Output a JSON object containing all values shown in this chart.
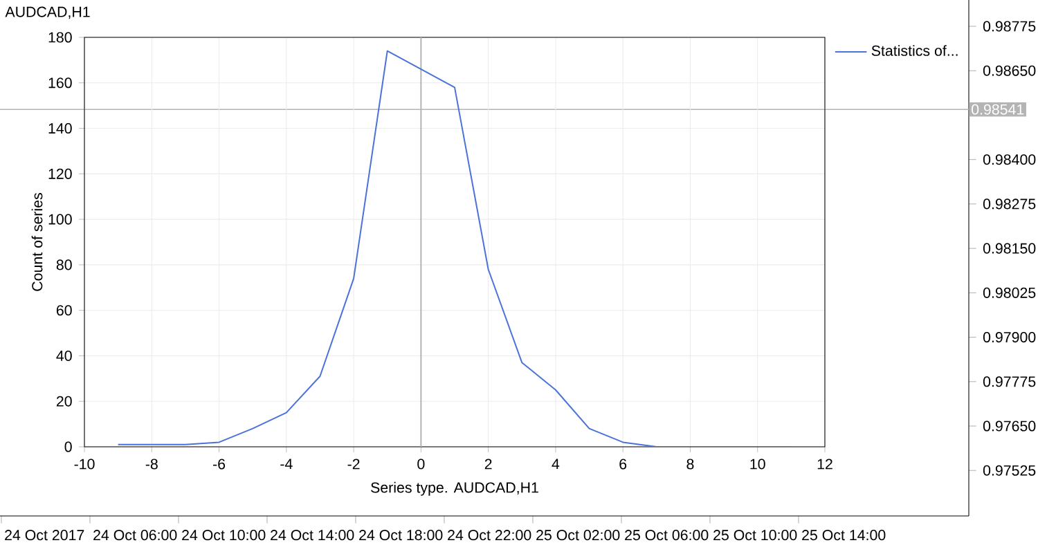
{
  "chart_data": [
    {
      "type": "line",
      "title": "AUDCAD,H1",
      "categories": [
        "24 Oct 2017",
        "24 Oct 06:00",
        "24 Oct 10:00",
        "24 Oct 14:00",
        "24 Oct 18:00",
        "24 Oct 22:00",
        "25 Oct 02:00",
        "25 Oct 06:00",
        "25 Oct 10:00",
        "25 Oct 14:00"
      ],
      "ylim": [
        0.97397,
        0.98849
      ],
      "yticks": [
        {
          "value": 0.98775,
          "label": "0.98775"
        },
        {
          "value": 0.9865,
          "label": "0.98650"
        },
        {
          "value": 0.984,
          "label": "0.98400"
        },
        {
          "value": 0.98275,
          "label": "0.98275"
        },
        {
          "value": 0.9815,
          "label": "0.98150"
        },
        {
          "value": 0.98025,
          "label": "0.98025"
        },
        {
          "value": 0.979,
          "label": "0.97900"
        },
        {
          "value": 0.97775,
          "label": "0.97775"
        },
        {
          "value": 0.9765,
          "label": "0.97650"
        },
        {
          "value": 0.97525,
          "label": "0.97525"
        }
      ],
      "ref_lines": [
        {
          "axis": "y",
          "value": 0.98541,
          "label": "0.98541",
          "color": "#b4b4b4"
        }
      ]
    },
    {
      "type": "line",
      "xlabel": "Series type. AUDCAD,H1",
      "ylabel": "Count of series",
      "x": [
        -9,
        -8,
        -7,
        -6,
        -5,
        -4,
        -3,
        -2,
        -1,
        1,
        2,
        3,
        4,
        5,
        6,
        7,
        8,
        9,
        10,
        11
      ],
      "series": [
        {
          "name": "Statistics of...",
          "color": "#4a72d8",
          "values": [
            1,
            1,
            1,
            2,
            8,
            15,
            31,
            74,
            174,
            158,
            78,
            37,
            25,
            8,
            2,
            0,
            0,
            0,
            0,
            0
          ]
        }
      ],
      "xlim": [
        -10,
        12
      ],
      "xticks": [
        -10,
        -8,
        -6,
        -4,
        -2,
        0,
        2,
        4,
        6,
        8,
        10,
        12
      ],
      "ylim": [
        0,
        180
      ],
      "yticks": [
        0,
        20,
        40,
        60,
        80,
        100,
        120,
        140,
        160,
        180
      ],
      "grid": true,
      "legend": "top right",
      "ref_lines": [
        {
          "axis": "x",
          "value": 0,
          "color": "#b4b4b4"
        }
      ]
    }
  ]
}
